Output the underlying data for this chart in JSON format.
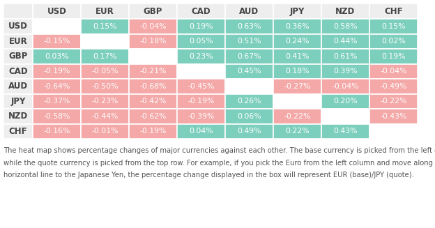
{
  "currencies": [
    "USD",
    "EUR",
    "GBP",
    "CAD",
    "AUD",
    "JPY",
    "NZD",
    "CHF"
  ],
  "values": [
    [
      null,
      0.15,
      -0.04,
      0.19,
      0.63,
      0.36,
      0.58,
      0.15
    ],
    [
      -0.15,
      null,
      -0.18,
      0.05,
      0.51,
      0.24,
      0.44,
      0.02
    ],
    [
      0.03,
      0.17,
      null,
      0.23,
      0.67,
      0.41,
      0.61,
      0.19
    ],
    [
      -0.19,
      -0.05,
      -0.21,
      null,
      0.45,
      0.18,
      0.39,
      -0.04
    ],
    [
      -0.64,
      -0.5,
      -0.68,
      -0.45,
      null,
      -0.27,
      -0.04,
      -0.49
    ],
    [
      -0.37,
      -0.23,
      -0.42,
      -0.19,
      0.26,
      null,
      0.2,
      -0.22
    ],
    [
      -0.58,
      -0.44,
      -0.62,
      -0.39,
      0.06,
      -0.22,
      null,
      -0.43
    ],
    [
      -0.16,
      -0.01,
      -0.19,
      0.04,
      0.49,
      0.22,
      0.43,
      null
    ]
  ],
  "positive_color": "#7DCFBD",
  "negative_color": "#F4A8A8",
  "diagonal_color": "#FFFFFF",
  "header_bg": "#EEEEEE",
  "text_color_cell": "#FFFFFF",
  "header_text_color": "#444444",
  "bg_color": "#FFFFFF",
  "table_border_color": "#FFFFFF",
  "caption_line1": "The heat map shows percentage changes of major currencies against each other. The base currency is picked from the left column,",
  "caption_line2": "while the quote currency is picked from the top row. For example, if you pick the Euro from the left column and move along the",
  "caption_line3": "horizontal line to the Japanese Yen, the percentage change displayed in the box will represent EUR (base)/JPY (quote).",
  "caption_fontsize": 7.2,
  "caption_color": "#555555",
  "cell_fontsize": 7.8,
  "header_fontsize": 8.5
}
